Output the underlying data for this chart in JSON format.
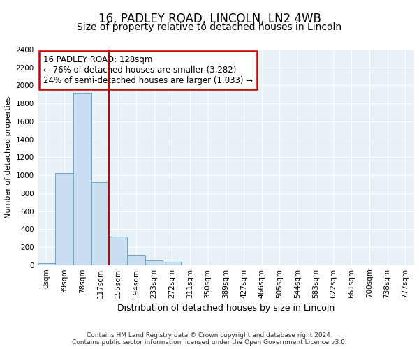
{
  "title1": "16, PADLEY ROAD, LINCOLN, LN2 4WB",
  "title2": "Size of property relative to detached houses in Lincoln",
  "xlabel": "Distribution of detached houses by size in Lincoln",
  "ylabel": "Number of detached properties",
  "annotation_title": "16 PADLEY ROAD: 128sqm",
  "annotation_line1": "← 76% of detached houses are smaller (3,282)",
  "annotation_line2": "24% of semi-detached houses are larger (1,033) →",
  "footer1": "Contains HM Land Registry data © Crown copyright and database right 2024.",
  "footer2": "Contains public sector information licensed under the Open Government Licence v3.0.",
  "bar_labels": [
    "0sqm",
    "39sqm",
    "78sqm",
    "117sqm",
    "155sqm",
    "194sqm",
    "233sqm",
    "272sqm",
    "311sqm",
    "350sqm",
    "389sqm",
    "427sqm",
    "466sqm",
    "505sqm",
    "544sqm",
    "583sqm",
    "622sqm",
    "661sqm",
    "700sqm",
    "738sqm",
    "777sqm"
  ],
  "bar_values": [
    25,
    1020,
    1920,
    920,
    320,
    105,
    55,
    40,
    0,
    0,
    0,
    0,
    0,
    0,
    0,
    0,
    0,
    0,
    0,
    0,
    0
  ],
  "bar_color": "#c9ddf0",
  "bar_edge_color": "#6aaad4",
  "vline_color": "#cc0000",
  "annotation_box_color": "#cc0000",
  "background_color": "#e8f0f8",
  "ylim": [
    0,
    2400
  ],
  "yticks": [
    0,
    200,
    400,
    600,
    800,
    1000,
    1200,
    1400,
    1600,
    1800,
    2000,
    2200,
    2400
  ],
  "title1_fontsize": 12,
  "title2_fontsize": 10,
  "ylabel_fontsize": 8,
  "xlabel_fontsize": 9,
  "annot_fontsize": 8.5,
  "tick_fontsize": 7.5,
  "footer_fontsize": 6.5
}
